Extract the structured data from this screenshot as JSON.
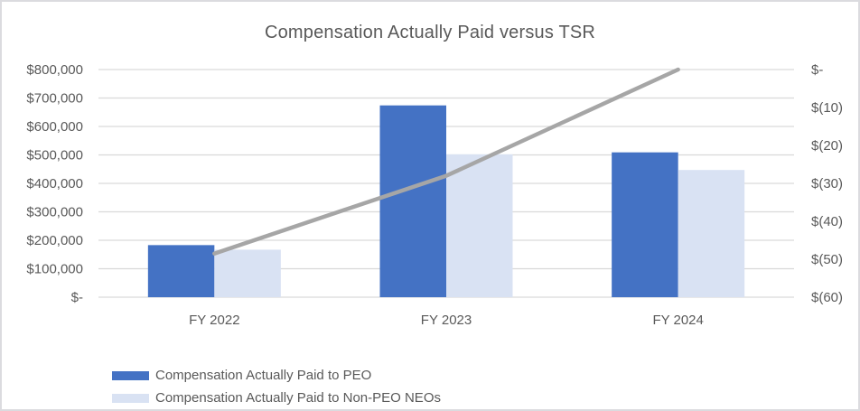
{
  "title": "Compensation Actually Paid versus TSR",
  "colors": {
    "peo_bar": "#4472c4",
    "non_peo_bar": "#d9e2f3",
    "tsr_line": "#a6a6a6",
    "gridline": "#d9d9d9",
    "text": "#595959",
    "border": "#dbdbdf",
    "background": "#ffffff"
  },
  "legend": {
    "items": [
      {
        "label": "Compensation Actually Paid to PEO",
        "color": "#4472c4"
      },
      {
        "label": "Compensation Actually Paid to Non-PEO NEOs",
        "color": "#d9e2f3"
      }
    ]
  },
  "chart_data": {
    "type": "bar",
    "title": "Compensation Actually Paid versus TSR",
    "categories": [
      "FY 2022",
      "FY 2023",
      "FY 2024"
    ],
    "series": [
      {
        "name": "Compensation Actually Paid to PEO",
        "type": "bar",
        "axis": "left",
        "color": "#4472c4",
        "values": [
          183000,
          674000,
          509000
        ]
      },
      {
        "name": "Compensation Actually Paid to Non-PEO NEOs",
        "type": "bar",
        "axis": "left",
        "color": "#d9e2f3",
        "values": [
          167000,
          502000,
          447000
        ]
      },
      {
        "name": "TSR",
        "type": "line",
        "axis": "right",
        "color": "#a6a6a6",
        "values": [
          -48.5,
          -28,
          0
        ]
      }
    ],
    "left_axis": {
      "min": 0,
      "max": 800000,
      "tick_step": 100000,
      "ticks": [
        "$800,000",
        "$700,000",
        "$600,000",
        "$500,000",
        "$400,000",
        "$300,000",
        "$200,000",
        "$100,000",
        "$-"
      ]
    },
    "right_axis": {
      "min": -60,
      "max": 0,
      "tick_step": 10,
      "ticks": [
        "$-",
        "$(10)",
        "$(20)",
        "$(30)",
        "$(40)",
        "$(50)",
        "$(60)"
      ]
    },
    "grid": true,
    "legend_position": "bottom-left"
  }
}
